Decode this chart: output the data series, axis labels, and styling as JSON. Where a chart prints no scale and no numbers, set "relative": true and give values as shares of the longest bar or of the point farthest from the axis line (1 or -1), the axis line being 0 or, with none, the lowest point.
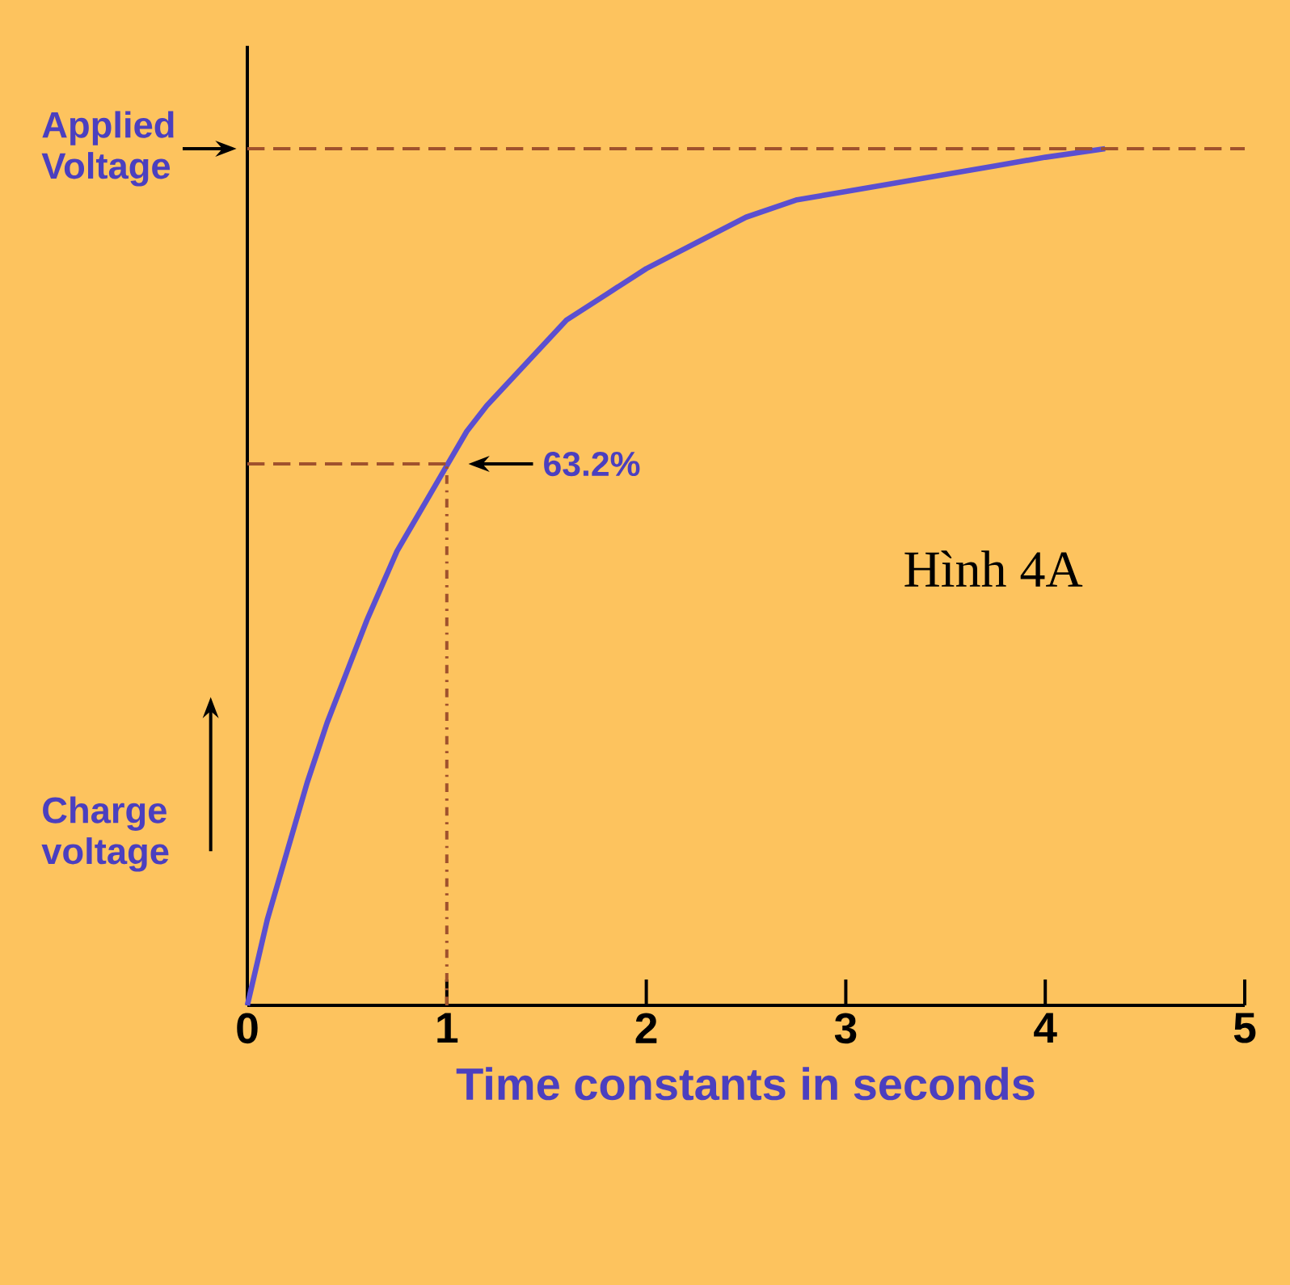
{
  "chart_data": {
    "type": "line",
    "relative": true,
    "xlabel": "Time constants in seconds",
    "ylabel": "Charge voltage",
    "xlim": [
      0,
      5
    ],
    "xticks": [
      0,
      1,
      2,
      3,
      4,
      5
    ],
    "series": [
      {
        "color": "#5b4fd0",
        "x": [
          0,
          0.05,
          0.1,
          0.15,
          0.2,
          0.3,
          0.4,
          0.5,
          0.6,
          0.75,
          0.9,
          1,
          1.1,
          1.2,
          1.4,
          1.6,
          1.8,
          2,
          2.25,
          2.5,
          2.75,
          3,
          3.25,
          3.5,
          3.75,
          4,
          4.3
        ],
        "values": [
          0,
          0.05,
          0.1,
          0.14,
          0.18,
          0.26,
          0.33,
          0.39,
          0.45,
          0.53,
          0.59,
          0.63,
          0.67,
          0.7,
          0.75,
          0.8,
          0.83,
          0.86,
          0.89,
          0.92,
          0.94,
          0.95,
          0.96,
          0.97,
          0.98,
          0.99,
          1
        ]
      },
      {
        "type": "line",
        "color": "#a0522d",
        "line_style": "dashed",
        "x": [
          0,
          1
        ],
        "values": [
          0.632,
          0.632
        ]
      },
      {
        "type": "line",
        "color": "#a0522d",
        "line_style": "dotted",
        "x": [
          1,
          1
        ],
        "values": [
          0,
          0.632
        ]
      }
    ],
    "ref_lines": [
      {
        "axis": "y",
        "value": 1,
        "label": "Applied Voltage",
        "line_style": "dashed",
        "color": "#a0522d"
      }
    ],
    "annotations": [
      {
        "text": "63.2%",
        "x": 1,
        "y": 0.632
      },
      "Hình 4A"
    ]
  }
}
